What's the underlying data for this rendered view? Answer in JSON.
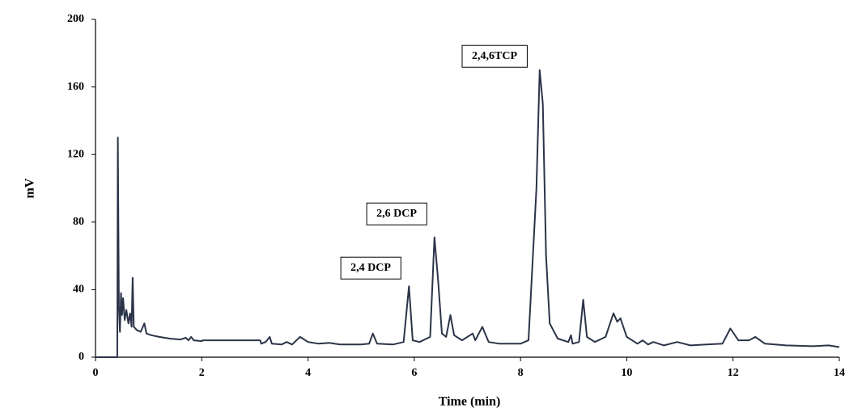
{
  "chart_data": {
    "type": "line",
    "x_label": "Time (min)",
    "y_label": "mV",
    "color": "#2b3448",
    "xlim": [
      0,
      14
    ],
    "xticks": [
      0,
      2,
      4,
      6,
      8,
      10,
      12,
      14
    ],
    "ylim": [
      0,
      200
    ],
    "yticks": [
      0,
      40,
      80,
      120,
      160,
      200
    ],
    "grid": false,
    "annotations": [
      "2,4,6TCP",
      "2,6 DCP",
      "2,4 DCP"
    ],
    "x": [
      0,
      0.4,
      0.41,
      0.42,
      0.44,
      0.46,
      0.48,
      0.5,
      0.52,
      0.55,
      0.58,
      0.62,
      0.65,
      0.68,
      0.7,
      0.72,
      0.78,
      0.85,
      0.92,
      0.96,
      1.05,
      1.2,
      1.4,
      1.6,
      1.7,
      1.75,
      1.8,
      1.85,
      2.0,
      2.02,
      3.1,
      3.12,
      3.2,
      3.28,
      3.32,
      3.5,
      3.6,
      3.7,
      3.85,
      4.0,
      4.2,
      4.4,
      4.6,
      5.0,
      5.15,
      5.22,
      5.3,
      5.6,
      5.8,
      5.9,
      5.97,
      6.1,
      6.3,
      6.38,
      6.45,
      6.52,
      6.6,
      6.68,
      6.75,
      6.9,
      7.1,
      7.15,
      7.28,
      7.4,
      7.6,
      7.8,
      8.0,
      8.15,
      8.3,
      8.36,
      8.42,
      8.48,
      8.55,
      8.7,
      8.9,
      8.95,
      8.98,
      9.1,
      9.18,
      9.25,
      9.4,
      9.6,
      9.75,
      9.82,
      9.88,
      10.0,
      10.2,
      10.3,
      10.4,
      10.5,
      10.7,
      10.95,
      11.2,
      11.5,
      11.8,
      11.95,
      12.1,
      12.3,
      12.42,
      12.6,
      13.0,
      13.5,
      13.8,
      14
    ],
    "values": [
      0,
      0,
      0,
      130,
      30,
      15,
      38,
      25,
      35,
      22,
      28,
      20,
      26,
      18,
      47,
      18,
      16,
      15,
      20,
      14,
      13,
      12,
      11,
      10.5,
      11.5,
      10,
      12,
      10,
      9.5,
      10,
      10,
      8,
      9,
      12,
      8,
      7.5,
      9,
      7.5,
      12,
      9,
      8,
      8.5,
      7.5,
      7.5,
      8,
      14,
      8,
      7.5,
      9,
      42,
      10,
      9,
      12,
      71,
      45,
      14,
      12,
      25,
      13,
      10,
      14,
      10,
      18,
      9,
      8,
      8,
      8,
      10,
      100,
      170,
      150,
      60,
      20,
      11,
      9,
      13,
      8,
      9,
      34,
      12,
      9,
      12,
      26,
      21,
      23,
      12,
      8,
      10,
      7.5,
      9,
      7,
      9,
      7,
      7.5,
      8,
      17,
      10,
      10,
      12,
      8,
      7,
      6.5,
      7,
      6
    ]
  }
}
